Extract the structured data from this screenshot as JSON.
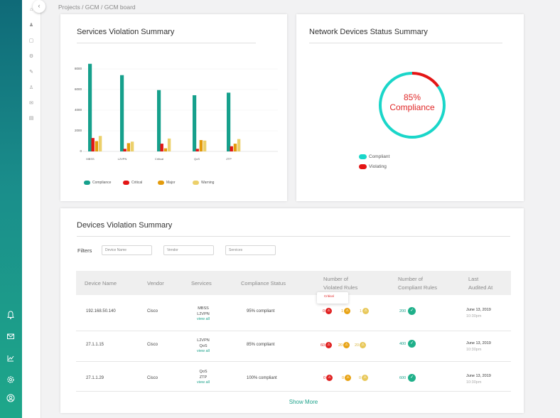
{
  "breadcrumb": "Projects / GCM / GCM board",
  "services_card": {
    "title": "Services Violation Summary",
    "y_ticks": [
      "8000",
      "6000",
      "4000",
      "2000",
      "0"
    ],
    "legend": [
      {
        "label": "Compliance",
        "color": "#16a08c"
      },
      {
        "label": "Critical",
        "color": "#e31515"
      },
      {
        "label": "Major",
        "color": "#e39b0c"
      },
      {
        "label": "Warning",
        "color": "#ecd06a"
      }
    ]
  },
  "chart_data": {
    "type": "bar",
    "categories": [
      "MBSS",
      "L2VPN",
      "Critical",
      "QoS",
      "ZTP"
    ],
    "series": [
      {
        "name": "Compliance",
        "values": [
          8500,
          7400,
          5950,
          5450,
          5700
        ]
      },
      {
        "name": "Critical",
        "values": [
          1300,
          250,
          750,
          250,
          500
        ]
      },
      {
        "name": "Major",
        "values": [
          1000,
          800,
          300,
          1100,
          750
        ]
      },
      {
        "name": "Warning",
        "values": [
          1500,
          950,
          1250,
          1050,
          1200
        ]
      }
    ],
    "ylim": [
      0,
      9000
    ]
  },
  "network_card": {
    "title": "Network Devices Status Summary",
    "percent": "85%",
    "label": "Compliance",
    "compliant_fraction": 0.85,
    "legend": [
      {
        "label": "Compliant",
        "color": "#1ad6c9"
      },
      {
        "label": "Violating",
        "color": "#e31515"
      }
    ]
  },
  "devices_card": {
    "title": "Devices Violation Summary",
    "filters_label": "Filters",
    "filters": {
      "device_name": "Device Name",
      "vendor": "Vendor",
      "services": "Services"
    },
    "headers": {
      "device_name": "Device Name",
      "vendor": "Vendor",
      "services": "Services",
      "compliance_status": "Compliance Status",
      "violated_1": "Number of",
      "violated_2": "Violated Rules",
      "compliant_1": "Number of",
      "compliant_2": "Compliant Rules",
      "audited_1": "Last",
      "audited_2": "Audited At"
    },
    "tooltip": "Critical",
    "rows": [
      {
        "device": "192.168.50.140",
        "vendor": "Cisco",
        "svc1": "MBSS",
        "svc2": "L2VPN",
        "view_all": "view all",
        "status": "95% compliant",
        "critical": "0",
        "major": "1",
        "warning": "1",
        "compliant": "200",
        "date": "June 13, 2019",
        "time": "10:30pm"
      },
      {
        "device": "27.1.1.15",
        "vendor": "Cisco",
        "svc1": "L2VPN",
        "svc2": "QoS",
        "view_all": "view all",
        "status": "85% compliant",
        "critical": "60",
        "major": "20",
        "warning": "20",
        "compliant": "400",
        "date": "June 13, 2019",
        "time": "10:30pm"
      },
      {
        "device": "27.1.1.29",
        "vendor": "Cisco",
        "svc1": "QoS",
        "svc2": "ZTP",
        "view_all": "view all",
        "status": "100% compliant",
        "critical": "0",
        "major": "0",
        "warning": "0",
        "compliant": "600",
        "date": "June 13, 2019",
        "time": "10:30pm"
      }
    ],
    "show_more": "Show More"
  },
  "icons": {
    "sidebar": [
      "bell-icon",
      "mail-icon",
      "chart-icon",
      "settings-icon",
      "user-icon"
    ],
    "rail": [
      "home-icon",
      "people-icon",
      "grid-icon",
      "gear-icon",
      "pen-icon",
      "users-icon",
      "mail-icon",
      "table-icon"
    ],
    "collapse": "chevron-left-icon",
    "warning": "warning-triangle-icon",
    "check": "check-icon"
  }
}
